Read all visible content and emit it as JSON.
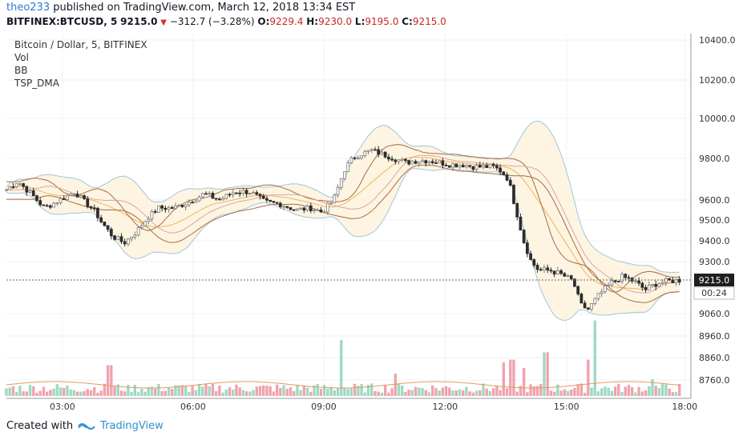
{
  "header": {
    "user": "theo233",
    "published_text": "published on TradingView.com, March 12, 2018 13:34 EST"
  },
  "symbol_bar": {
    "symbol": "BITFINEX:BTCUSD, 5",
    "price": "9215.0",
    "change": "−312.7 (−3.28%)",
    "o_label": "O:",
    "o_value": "9229.4",
    "h_label": "H:",
    "h_value": "9230.0",
    "l_label": "L:",
    "l_value": "9195.0",
    "c_label": "C:",
    "c_value": "9215.0"
  },
  "legend": {
    "title": "Bitcoin / Dollar, 5, BITFINEX",
    "items": [
      "Vol",
      "BB",
      "TSP_DMA"
    ]
  },
  "price_badge": "9215.0",
  "countdown_badge": "00:24",
  "footer": {
    "created_with": "Created with",
    "brand": "TradingView"
  },
  "colors": {
    "up": "#7b7b7b",
    "down": "#2d2d2d",
    "vol_up": "#9fd9c3",
    "vol_down": "#f0a3ad",
    "bb_band": "#9fc7da",
    "bb_fill": "#fdf3de",
    "dma": "#a86b47",
    "price_line": "#666666",
    "link": "#2c7bd6"
  },
  "chart_data": {
    "type": "candlestick",
    "title": "Bitcoin / Dollar, 5, BITFINEX",
    "y_axis_ticks": [
      "10400.0",
      "10200.0",
      "10000.0",
      "9800.0",
      "9600.0",
      "9500.0",
      "9400.0",
      "9300.0",
      "9060.0",
      "8960.0",
      "8860.0",
      "8760.0"
    ],
    "x_axis_ticks": [
      "03:00",
      "06:00",
      "09:00",
      "12:00",
      "15:00",
      "18:00"
    ],
    "last_price": 9215.0,
    "close_path": [
      [
        0,
        9650
      ],
      [
        0.3,
        9690
      ],
      [
        0.7,
        9620
      ],
      [
        1.0,
        9560
      ],
      [
        1.4,
        9600
      ],
      [
        1.8,
        9640
      ],
      [
        2.0,
        9600
      ],
      [
        2.3,
        9550
      ],
      [
        2.5,
        9490
      ],
      [
        2.8,
        9420
      ],
      [
        3.1,
        9390
      ],
      [
        3.4,
        9440
      ],
      [
        3.7,
        9510
      ],
      [
        4.0,
        9560
      ],
      [
        4.4,
        9560
      ],
      [
        4.8,
        9590
      ],
      [
        5.2,
        9630
      ],
      [
        5.6,
        9600
      ],
      [
        6.0,
        9640
      ],
      [
        6.4,
        9640
      ],
      [
        6.8,
        9590
      ],
      [
        7.2,
        9580
      ],
      [
        7.6,
        9550
      ],
      [
        8.0,
        9560
      ],
      [
        8.3,
        9540
      ],
      [
        8.6,
        9600
      ],
      [
        8.9,
        9750
      ],
      [
        9.1,
        9800
      ],
      [
        9.3,
        9820
      ],
      [
        9.6,
        9840
      ],
      [
        9.9,
        9820
      ],
      [
        10.2,
        9800
      ],
      [
        10.5,
        9780
      ],
      [
        10.8,
        9790
      ],
      [
        11.1,
        9790
      ],
      [
        11.4,
        9780
      ],
      [
        11.7,
        9770
      ],
      [
        12.0,
        9770
      ],
      [
        12.3,
        9760
      ],
      [
        12.6,
        9760
      ],
      [
        12.8,
        9760
      ],
      [
        13.0,
        9740
      ],
      [
        13.2,
        9700
      ],
      [
        13.4,
        9550
      ],
      [
        13.6,
        9400
      ],
      [
        13.8,
        9300
      ],
      [
        14.0,
        9260
      ],
      [
        14.3,
        9260
      ],
      [
        14.6,
        9240
      ],
      [
        14.9,
        9210
      ],
      [
        15.1,
        9100
      ],
      [
        15.3,
        9080
      ],
      [
        15.6,
        9150
      ],
      [
        15.9,
        9200
      ],
      [
        16.2,
        9230
      ],
      [
        16.5,
        9210
      ],
      [
        16.8,
        9170
      ],
      [
        17.1,
        9200
      ],
      [
        17.4,
        9210
      ],
      [
        17.7,
        9215
      ]
    ],
    "volume_spikes": [
      [
        2.7,
        0.55
      ],
      [
        3.2,
        0.2
      ],
      [
        8.8,
        1.0
      ],
      [
        10.2,
        0.4
      ],
      [
        13.1,
        0.6
      ],
      [
        13.3,
        0.65
      ],
      [
        13.6,
        0.5
      ],
      [
        14.2,
        0.78
      ],
      [
        15.3,
        0.65
      ],
      [
        15.5,
        1.35
      ],
      [
        17.0,
        0.3
      ]
    ]
  }
}
